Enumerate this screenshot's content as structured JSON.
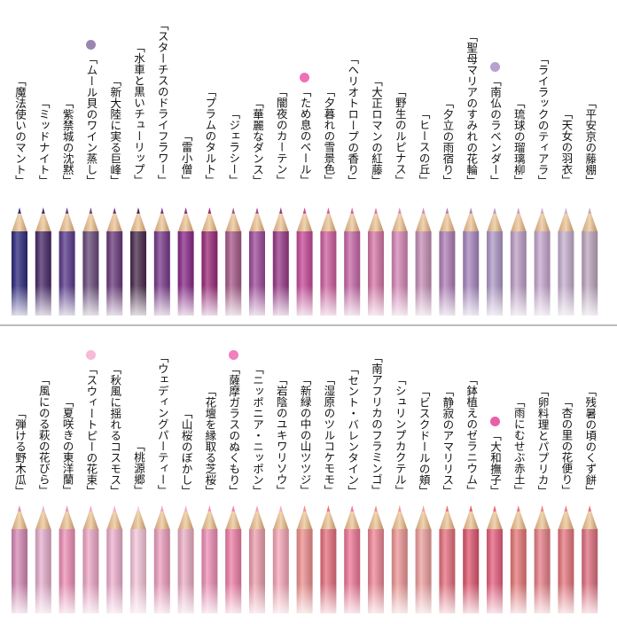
{
  "rows": [
    {
      "pencils": [
        {
          "label": "「魔法使いのマント」",
          "color": "#2e2a7e"
        },
        {
          "label": "「ミッドナイト」",
          "color": "#4a2a6a"
        },
        {
          "label": "「紫禁城の沈黙」",
          "color": "#5a3a8c"
        },
        {
          "label": "「ムール貝のワイン蒸し」",
          "color": "#6a4a7a"
        },
        {
          "label": "「新大陸に実る巨峰」",
          "color": "#6a3a7c"
        },
        {
          "label": "「水車と黒いチューリップ」",
          "color": "#4a2a4c"
        },
        {
          "label": "「スターチスのドライフラワー」",
          "color": "#7a3a8c"
        },
        {
          "label": "「雷小僧」",
          "color": "#8a2a8a"
        },
        {
          "label": "「プラムのタルト」",
          "color": "#9c2a7a"
        },
        {
          "label": "「ジェラシー」",
          "color": "#a85a8a"
        },
        {
          "label": "「華麗なダンス」",
          "color": "#a04a9c"
        },
        {
          "label": "「闇夜のカーテン」",
          "color": "#9a3a8a"
        },
        {
          "label": "「ため息のベール」",
          "color": "#c84a9a"
        },
        {
          "label": "「夕暮れの雪景色」",
          "color": "#d060a0"
        },
        {
          "label": "「ヘリオトロープの香り」",
          "color": "#c868a8"
        },
        {
          "label": "「大正ロマンの紅藤」",
          "color": "#d878a8"
        },
        {
          "label": "「野生のルピナス」",
          "color": "#d888b8"
        },
        {
          "label": "「ヒースの丘」",
          "color": "#c890b8"
        },
        {
          "label": "「夕立の雨宿り」",
          "color": "#b080b8"
        },
        {
          "label": "「聖母マリアのすみれの花輪」",
          "color": "#a888c0"
        },
        {
          "label": "「南仏のラベンダー」",
          "color": "#b09ac8"
        },
        {
          "label": "「琉球の瑠璃柳」",
          "color": "#c0a0c8"
        },
        {
          "label": "「ライラックのティアラ」",
          "color": "#c8a8d0"
        },
        {
          "label": "「天女の羽衣」",
          "color": "#c8b0d0"
        },
        {
          "label": "「平安京の藤棚」",
          "color": "#c0a8c0"
        }
      ]
    },
    {
      "pencils": [
        {
          "label": "「弾ける野木瓜」",
          "color": "#d88ab8"
        },
        {
          "label": "「風にのる萩の花びら」",
          "color": "#e8b0d0"
        },
        {
          "label": "「夏咲きの東洋蘭」",
          "color": "#f090b8"
        },
        {
          "label": "「スウィートピーの花束」",
          "color": "#f0a8c8"
        },
        {
          "label": "「秋風に揺れるコスモス」",
          "color": "#f0b0d0"
        },
        {
          "label": "「桃源郷」",
          "color": "#f8c8dc"
        },
        {
          "label": "「ウェディングパーティー」",
          "color": "#f0a0c0"
        },
        {
          "label": "「山桜のぼかし」",
          "color": "#f0b0c8"
        },
        {
          "label": "「花壇を縁取る芝桜」",
          "color": "#f090b8"
        },
        {
          "label": "「薩摩ガラスのぬくもり」",
          "color": "#f080a8"
        },
        {
          "label": "「ニッポニア・ニッポン」",
          "color": "#f0a0b0"
        },
        {
          "label": "「岩陰のユキワリソウ」",
          "color": "#f8a8b8"
        },
        {
          "label": "「新緑の中の山ツツジ」",
          "color": "#f09090"
        },
        {
          "label": "「湿原のツルコケモモ」",
          "color": "#e87080"
        },
        {
          "label": "「セント・バレンタイン」",
          "color": "#f07898"
        },
        {
          "label": "「南アフリカのフラミンゴ」",
          "color": "#f08898"
        },
        {
          "label": "「シュリンプカクテル」",
          "color": "#f09898"
        },
        {
          "label": "「ビスクドールの頬」",
          "color": "#f0a0a0"
        },
        {
          "label": "「静寂のアマリリス」",
          "color": "#e87080"
        },
        {
          "label": "「鉢植えのゼラニウム」",
          "color": "#e05870"
        },
        {
          "label": "「大和撫子」",
          "color": "#e86080"
        },
        {
          "label": "「雨にむせぶ赤土」",
          "color": "#e87878"
        },
        {
          "label": "「卵料理とパプリカ」",
          "color": "#e88088"
        },
        {
          "label": "「杏の里の花便り」",
          "color": "#e87880"
        },
        {
          "label": "「残暑の頃のくず餅」",
          "color": "#e07080"
        }
      ]
    }
  ]
}
